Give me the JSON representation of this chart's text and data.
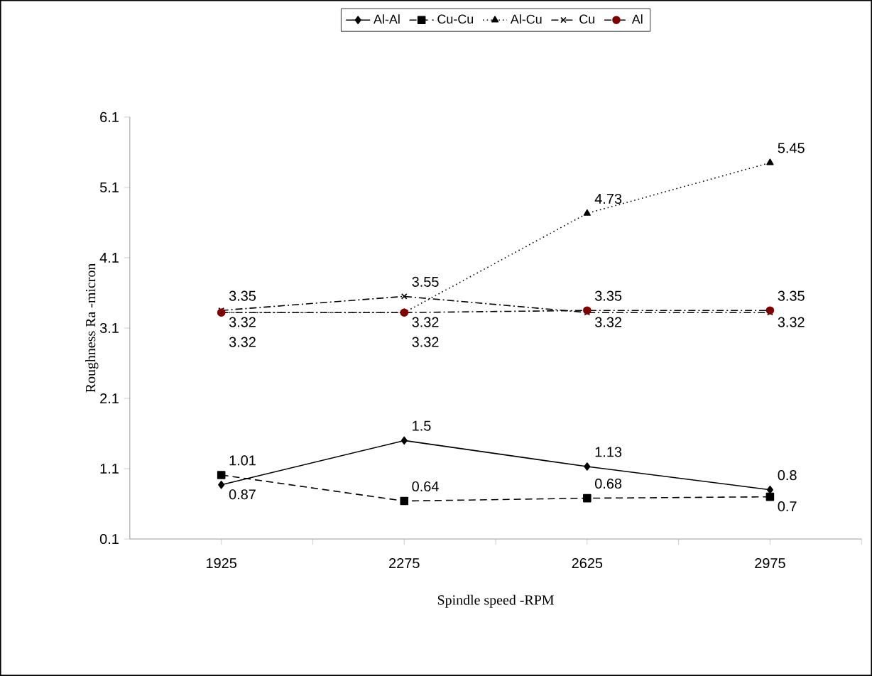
{
  "chart_data": {
    "type": "line",
    "xlabel": "Spindle speed -RPM",
    "ylabel": "Roughness Ra -micron",
    "categories": [
      "1925",
      "2275",
      "2625",
      "2975"
    ],
    "series": [
      {
        "name": "Al-Al",
        "color": "#000000",
        "marker": "diamond",
        "line_style": "solid",
        "values": [
          0.87,
          1.5,
          1.13,
          0.8
        ]
      },
      {
        "name": "Cu-Cu",
        "color": "#000000",
        "marker": "square",
        "line_style": "dashed",
        "values": [
          1.01,
          0.64,
          0.68,
          0.7
        ]
      },
      {
        "name": "Al-Cu",
        "color": "#000000",
        "marker": "triangle",
        "line_style": "dotted",
        "values": [
          3.32,
          3.32,
          4.73,
          5.45
        ]
      },
      {
        "name": "Cu",
        "color": "#000000",
        "marker": "cross",
        "line_style": "dashdot",
        "values": [
          3.35,
          3.55,
          3.32,
          3.32
        ]
      },
      {
        "name": "Al",
        "color": "#800000",
        "marker": "circle",
        "line_style": "dashdot",
        "values": [
          3.32,
          3.32,
          3.35,
          3.35
        ]
      }
    ],
    "ylim": [
      0.1,
      6.1
    ],
    "yticks": [
      0.1,
      1.1,
      2.1,
      3.1,
      4.1,
      5.1,
      6.1
    ],
    "data_labels": true,
    "grid": false,
    "legend": "top"
  }
}
